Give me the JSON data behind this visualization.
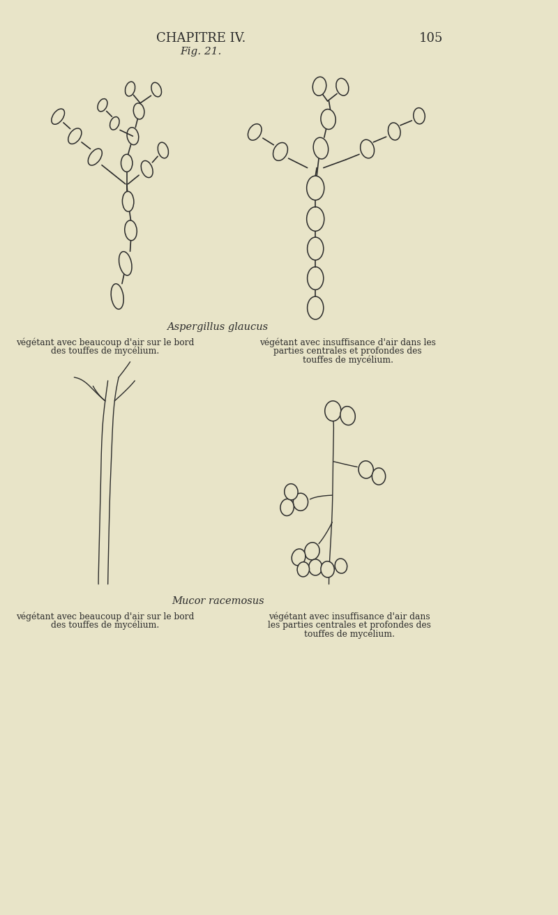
{
  "bg_color": "#e8e4c8",
  "line_color": "#2a2a2a",
  "title": "CHAPITRE IV.",
  "page_num": "105",
  "fig_label": "Fig. 21.",
  "aspergillus_label": "Aspergillus glaucus",
  "asp_left_text1": "végétant avec beaucoup d'air sur le bord",
  "asp_left_text2": "des touffes de mycélium.",
  "asp_right_text1": "végétant avec insuffisance d'air dans les",
  "asp_right_text2": "parties centrales et profondes des",
  "asp_right_text3": "touffes de mycélium.",
  "mucor_label": "Mucor racemosus",
  "muc_left_text1": "végétant avec beaucoup d'air sur le bord",
  "muc_left_text2": "des touffes de mycélium.",
  "muc_right_text1": "végétant avec insuffisance d'air dans",
  "muc_right_text2": "les parties centrales et profondes des",
  "muc_right_text3": "touffes de mycélium."
}
